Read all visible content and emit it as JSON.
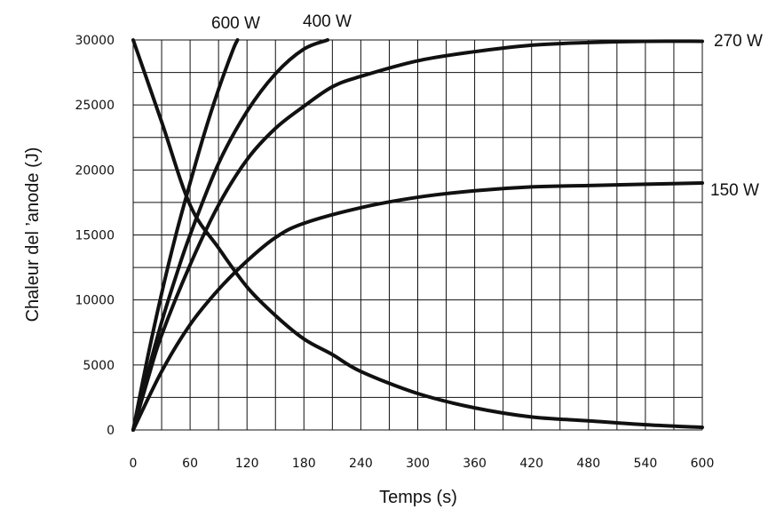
{
  "chart_data": {
    "type": "line",
    "title": "",
    "xlabel": "Temps (s)",
    "ylabel": "Chaleur del ’anode (J)",
    "xlim": [
      0,
      600
    ],
    "ylim": [
      0,
      30000
    ],
    "x_ticks": [
      "0",
      "60",
      "120",
      "180",
      "240",
      "300",
      "360",
      "420",
      "480",
      "540",
      "600"
    ],
    "y_ticks": [
      "0",
      "5000",
      "10000",
      "15000",
      "20000",
      "25000",
      "30000"
    ],
    "grid": true,
    "series": [
      {
        "name": "600 W",
        "x": [
          0,
          15,
          30,
          45,
          60,
          75,
          90,
          105,
          110
        ],
        "y": [
          0,
          5500,
          10500,
          15000,
          19000,
          22800,
          26200,
          29200,
          30000
        ]
      },
      {
        "name": "400 W",
        "x": [
          0,
          15,
          30,
          45,
          60,
          90,
          120,
          150,
          180,
          205
        ],
        "y": [
          0,
          4300,
          8300,
          11800,
          15000,
          20500,
          24500,
          27400,
          29300,
          30000
        ]
      },
      {
        "name": "270 W",
        "x": [
          0,
          15,
          30,
          60,
          90,
          120,
          150,
          180,
          210,
          240,
          300,
          360,
          420,
          480,
          540,
          600
        ],
        "y": [
          0,
          3800,
          7300,
          12700,
          17300,
          20800,
          23200,
          24900,
          26400,
          27200,
          28400,
          29100,
          29600,
          29800,
          29900,
          29900
        ]
      },
      {
        "name": "150 W",
        "x": [
          0,
          30,
          60,
          90,
          120,
          150,
          180,
          240,
          300,
          360,
          420,
          480,
          540,
          600
        ],
        "y": [
          0,
          4500,
          8100,
          10800,
          13000,
          14800,
          15900,
          17100,
          17900,
          18400,
          18700,
          18800,
          18900,
          19000
        ]
      },
      {
        "name": "",
        "x": [
          0,
          30,
          60,
          90,
          120,
          150,
          180,
          210,
          240,
          300,
          360,
          420,
          480,
          540,
          600
        ],
        "y": [
          30000,
          23700,
          17300,
          14000,
          11000,
          8800,
          7000,
          5800,
          4500,
          2800,
          1700,
          1000,
          700,
          400,
          200
        ]
      }
    ]
  }
}
